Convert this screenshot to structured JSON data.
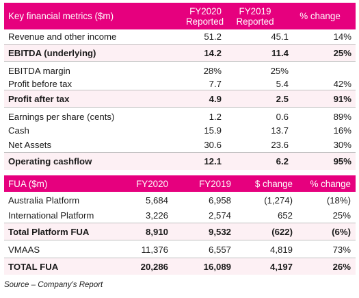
{
  "table1": {
    "headers": [
      "Key financial metrics ($m)",
      "FY2020 Reported",
      "FY2019 Reported",
      "% change"
    ],
    "rows": [
      {
        "label": "Revenue and other income",
        "fy2020": "51.2",
        "fy2019": "45.1",
        "change": "14%"
      },
      {
        "label": "EBITDA (underlying)",
        "fy2020": "14.2",
        "fy2019": "11.4",
        "change": "25%"
      },
      {
        "label": "EBITDA margin",
        "fy2020": "28%",
        "fy2019": "25%",
        "change": ""
      },
      {
        "label": "Profit before tax",
        "fy2020": "7.7",
        "fy2019": "5.4",
        "change": "42%"
      },
      {
        "label": "Profit after tax",
        "fy2020": "4.9",
        "fy2019": "2.5",
        "change": "91%"
      },
      {
        "label": "Earnings per share (cents)",
        "fy2020": "1.2",
        "fy2019": "0.6",
        "change": "89%"
      },
      {
        "label": "Cash",
        "fy2020": "15.9",
        "fy2019": "13.7",
        "change": "16%"
      },
      {
        "label": "Net Assets",
        "fy2020": "30.6",
        "fy2019": "23.6",
        "change": "30%"
      },
      {
        "label": "Operating cashflow",
        "fy2020": "12.1",
        "fy2019": "6.2",
        "change": "95%"
      }
    ]
  },
  "table2": {
    "headers": [
      "FUA ($m)",
      "FY2020",
      "FY2019",
      "$ change",
      "% change"
    ],
    "rows": [
      {
        "label": "Australia Platform",
        "fy2020": "5,684",
        "fy2019": "6,958",
        "dchange": "(1,274)",
        "pchange": "(18%)"
      },
      {
        "label": "International Platform",
        "fy2020": "3,226",
        "fy2019": "2,574",
        "dchange": "652",
        "pchange": "25%"
      },
      {
        "label": "Total Platform FUA",
        "fy2020": "8,910",
        "fy2019": "9,532",
        "dchange": "(622)",
        "pchange": "(6%)"
      },
      {
        "label": "VMAAS",
        "fy2020": "11,376",
        "fy2019": "6,557",
        "dchange": "4,819",
        "pchange": "73%"
      },
      {
        "label": "TOTAL FUA",
        "fy2020": "20,286",
        "fy2019": "16,089",
        "dchange": "4,197",
        "pchange": "26%"
      }
    ]
  },
  "source": "Source – Company’s Report",
  "colors": {
    "header_bg": "#e6007e",
    "shade_bg": "#fdf0f4"
  }
}
